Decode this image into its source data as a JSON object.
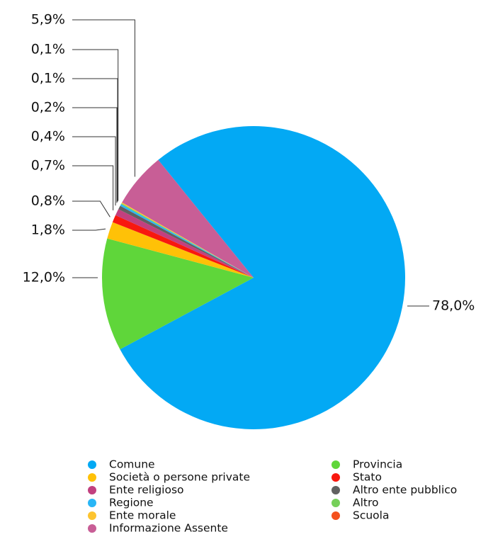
{
  "chart_data": {
    "type": "pie",
    "categories": [
      "Comune",
      "Provincia",
      "Società o persone private",
      "Stato",
      "Ente religioso",
      "Altro ente pubblico",
      "Regione",
      "Altro",
      "Ente morale",
      "Scuola",
      "Informazione Assente"
    ],
    "values": [
      78.0,
      12.0,
      1.8,
      0.8,
      0.7,
      0.4,
      0.2,
      0.1,
      0.1,
      0,
      5.9
    ],
    "value_labels": [
      "78,0%",
      "12,0%",
      "1,8%",
      "0,8%",
      "0,7%",
      "0,4%",
      "0,2%",
      "0,1%",
      "0,1%",
      null,
      "5,9%"
    ],
    "colors": [
      "#03a9f4",
      "#5fd63a",
      "#ffc107",
      "#f8180f",
      "#c2407f",
      "#616161",
      "#29b6f6",
      "#76d05a",
      "#fdc42f",
      "#f4511e",
      "#c85e96"
    ],
    "legend": "bottom"
  }
}
